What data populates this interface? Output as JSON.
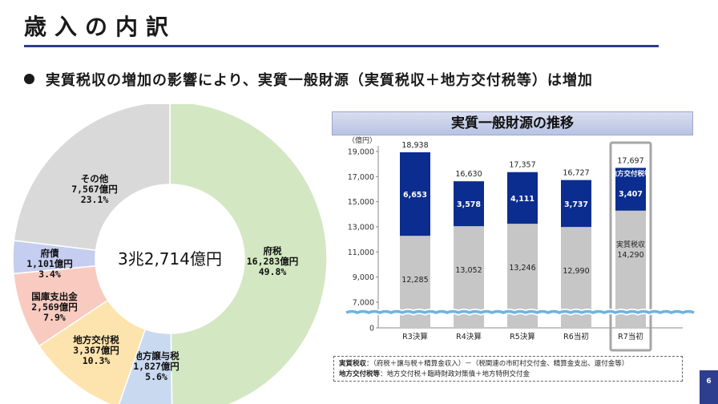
{
  "page": {
    "title": "歳入の内訳",
    "bullet": "実質税収の増加の影響により、実質一般財源（実質税収＋地方交付税等）は増加",
    "page_number": "6"
  },
  "notes": {
    "line1_label": "実質税収",
    "line1_text": "：（府税＋譲与税＋精算金収入）－（税関連の市町村交付金、精算金支出、還付金等）",
    "line2_label": "地方交付税等",
    "line2_text": "：地方交付税＋臨時財政対策債＋地方特例交付金"
  },
  "colors": {
    "accent": "#2d3e8f",
    "bar_dark": "#0b2d8f",
    "bar_gray": "#c6c6c6",
    "wave": "#6fb3e0"
  },
  "chart_data": [
    {
      "type": "pie",
      "variant": "donut",
      "title": "",
      "center_label": "3兆2,714億円",
      "slices": [
        {
          "name": "府税",
          "value": 16283,
          "value_label": "16,283億円",
          "percent_label": "49.8%",
          "color": "#d3e8c2"
        },
        {
          "name": "地方譲与税",
          "value": 1827,
          "value_label": "1,827億円",
          "percent_label": "5.6%",
          "color": "#c9d9f0"
        },
        {
          "name": "地方交付税",
          "value": 3367,
          "value_label": "3,367億円",
          "percent_label": "10.3%",
          "color": "#fde3ad"
        },
        {
          "name": "国庫支出金",
          "value": 2569,
          "value_label": "2,569億円",
          "percent_label": "7.9%",
          "color": "#f9cbc0"
        },
        {
          "name": "府債",
          "value": 1101,
          "value_label": "1,101億円",
          "percent_label": "3.4%",
          "color": "#c5cdf0"
        },
        {
          "name": "その他",
          "value": 7567,
          "value_label": "7,567億円",
          "percent_label": "23.1%",
          "color": "#d9d9d9"
        }
      ]
    },
    {
      "type": "bar",
      "stacked": true,
      "title": "実質一般財源の推移",
      "ylabel": "（億円）",
      "categories": [
        "R3決算",
        "R4決算",
        "R5決算",
        "R6当初",
        "R7当初"
      ],
      "yticks": [
        "19,000",
        "17,000",
        "15,000",
        "13,000",
        "11,000",
        "9,000",
        "7,000",
        "0"
      ],
      "ytick_values": [
        19000,
        17000,
        15000,
        13000,
        11000,
        9000,
        7000,
        0
      ],
      "axis_break": "between 0 and 7,000",
      "series": [
        {
          "name": "実質税収",
          "values": [
            12285,
            13052,
            13246,
            12990,
            14290
          ],
          "labels": [
            "12,285",
            "13,052",
            "13,246",
            "12,990",
            "14,290"
          ]
        },
        {
          "name": "地方交付税等",
          "values": [
            6653,
            3578,
            4111,
            3737,
            3407
          ],
          "labels": [
            "6,653",
            "3,578",
            "4,111",
            "3,737",
            "3,407"
          ]
        }
      ],
      "totals": [
        18938,
        16630,
        17357,
        16727,
        17697
      ],
      "total_labels": [
        "18,938",
        "16,630",
        "17,357",
        "16,727",
        "17,697"
      ],
      "highlight_index": 4,
      "highlight_labels": {
        "top_segment": "地方交付税等",
        "bottom_segment": "実質税収"
      }
    }
  ]
}
